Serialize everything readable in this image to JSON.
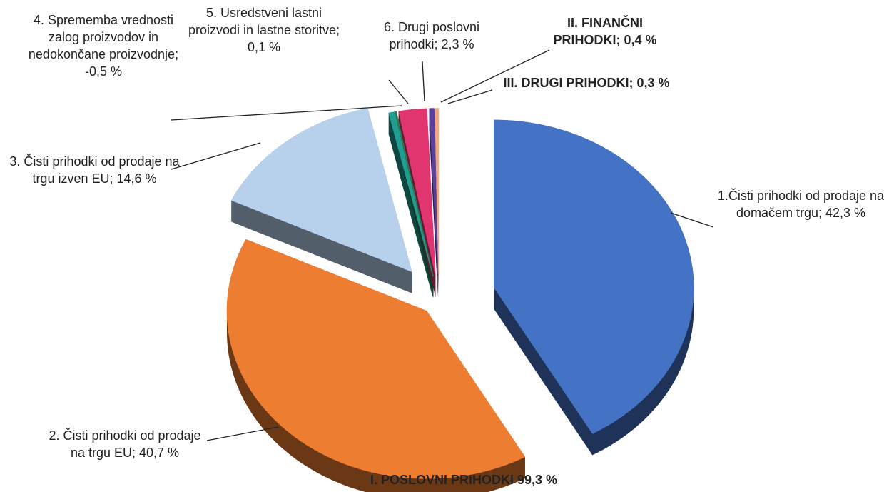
{
  "chart_data": {
    "type": "pie",
    "categories": [
      "1.Čisti prihodki od prodaje na domačem trgu",
      "2. Čisti prihodki od prodaje na trgu EU",
      "3. Čisti prihodki od prodaje na trgu izven EU",
      "4. Sprememba vrednosti zalog proizvodov in nedokončane proizvodnje",
      "5. Usredstveni lastni proizvodi in lastne storitve",
      "6. Drugi poslovni prihodki",
      "II. FINANČNI PRIHODKI",
      "III. DRUGI PRIHODKI"
    ],
    "values": [
      42.3,
      40.7,
      14.6,
      -0.5,
      0.1,
      2.3,
      0.4,
      0.3
    ],
    "value_labels": [
      "42,3 %",
      "40,7 %",
      "14,6 %",
      "-0,5 %",
      "0,1 %",
      "2,3 %",
      "0,4 %",
      "0,3 %"
    ],
    "label_separator": "; ",
    "label_bold": [
      false,
      false,
      false,
      false,
      false,
      false,
      true,
      true
    ],
    "colors": [
      "#4472c4",
      "#ed7d31",
      "#b7d1ec",
      "#1f9e92",
      "#2e7d4f",
      "#e0356f",
      "#5b3f9e",
      "#f4a582"
    ],
    "annotation": "I. POSLOVNI PRIHODKI 99,3 %"
  }
}
